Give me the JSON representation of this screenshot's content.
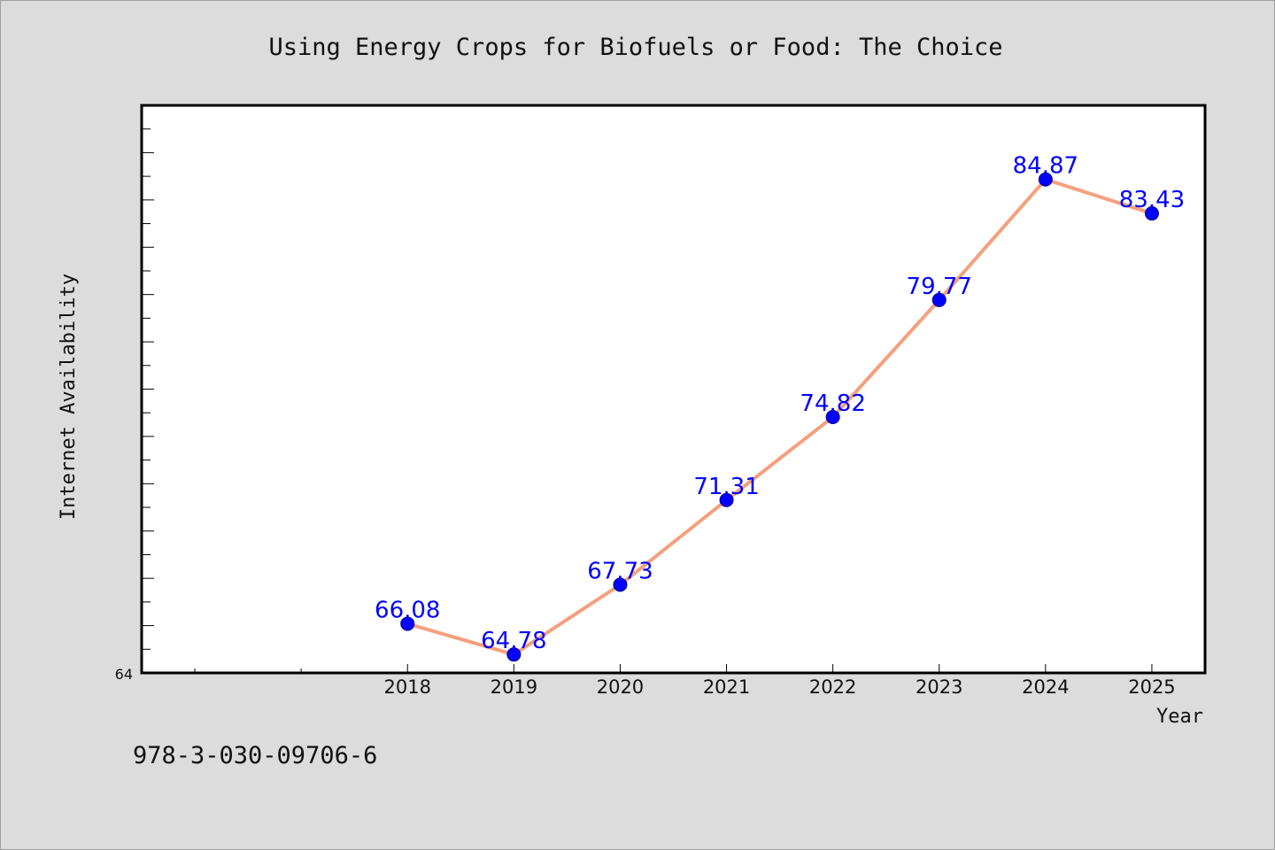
{
  "chart_data": {
    "type": "line",
    "title": "Using Energy Crops for Biofuels or Food: The Choice",
    "xlabel": "Year",
    "ylabel": "Internet Availability",
    "x": [
      "2018",
      "2019",
      "2020",
      "2021",
      "2022",
      "2023",
      "2024",
      "2025"
    ],
    "series": [
      {
        "values": [
          66.08,
          64.78,
          67.73,
          71.31,
          74.82,
          79.77,
          84.87,
          83.43
        ]
      }
    ],
    "data_labels": [
      "66.08",
      "64.78",
      "67.73",
      "71.31",
      "74.82",
      "79.77",
      "84.87",
      "83.43"
    ],
    "xlim": [
      2015.5,
      2025.5
    ],
    "ylim": [
      64,
      88
    ],
    "ytick_labels": [
      "64"
    ],
    "grid": false,
    "legend": "none",
    "line_color": "#f4a07e",
    "marker_color": "#0000ff",
    "label_color": "#0000ff"
  },
  "footer": {
    "isbn": "978-3-030-09706-6"
  }
}
